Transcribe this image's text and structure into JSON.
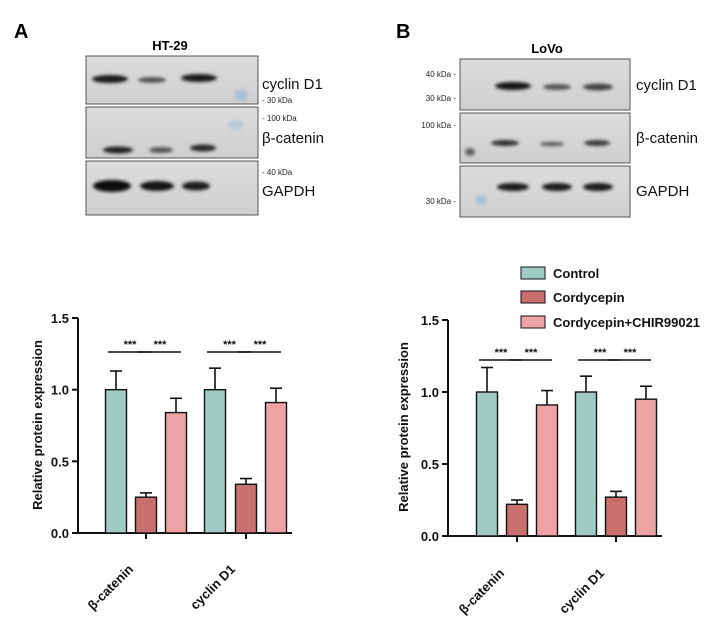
{
  "panels": {
    "a": {
      "letter": "A",
      "cell_line": "HT-29"
    },
    "b": {
      "letter": "B",
      "cell_line": "LoVo"
    }
  },
  "blots": {
    "a": {
      "proteins": [
        "cyclin D1",
        "β-catenin",
        "GAPDH"
      ],
      "markers": [
        "- 30 kDa",
        "- 100 kDa",
        "- 40 kDa"
      ]
    },
    "b": {
      "proteins": [
        "cyclin D1",
        "β-catenin",
        "GAPDH"
      ],
      "markers": [
        "40 kDa -",
        "30 kDa -",
        "100 kDa -",
        "30 kDa -"
      ]
    }
  },
  "colors": {
    "control": "#9fcbc2",
    "cordycepin": "#c9706e",
    "chir": "#eda3a3"
  },
  "legend": [
    "Control",
    "Cordycepin",
    "Cordycepin+CHIR99021"
  ],
  "significance": "***",
  "chart_data": [
    {
      "type": "bar",
      "panel": "A",
      "categories": [
        "β-catenin",
        "cyclin D1"
      ],
      "series": [
        {
          "name": "Control",
          "values": [
            1.0,
            1.0
          ],
          "errors": [
            0.13,
            0.15
          ]
        },
        {
          "name": "Cordycepin",
          "values": [
            0.25,
            0.34
          ],
          "errors": [
            0.03,
            0.04
          ]
        },
        {
          "name": "Cordycepin+CHIR99021",
          "values": [
            0.84,
            0.91
          ],
          "errors": [
            0.1,
            0.1
          ]
        }
      ],
      "ylabel": "Relative protein expression",
      "ylim": [
        0,
        1.5
      ],
      "yticks": [
        "0.0",
        "0.5",
        "1.0",
        "1.5"
      ],
      "annotations": [
        "***",
        "***",
        "***",
        "***"
      ]
    },
    {
      "type": "bar",
      "panel": "B",
      "categories": [
        "β-catenin",
        "cyclin D1"
      ],
      "series": [
        {
          "name": "Control",
          "values": [
            1.0,
            1.0
          ],
          "errors": [
            0.17,
            0.11
          ]
        },
        {
          "name": "Cordycepin",
          "values": [
            0.22,
            0.27
          ],
          "errors": [
            0.03,
            0.04
          ]
        },
        {
          "name": "Cordycepin+CHIR99021",
          "values": [
            0.91,
            0.95
          ],
          "errors": [
            0.1,
            0.09
          ]
        }
      ],
      "ylabel": "Relative protein expression",
      "ylim": [
        0,
        1.5
      ],
      "yticks": [
        "0.0",
        "0.5",
        "1.0",
        "1.5"
      ],
      "annotations": [
        "***",
        "***",
        "***",
        "***"
      ]
    }
  ]
}
